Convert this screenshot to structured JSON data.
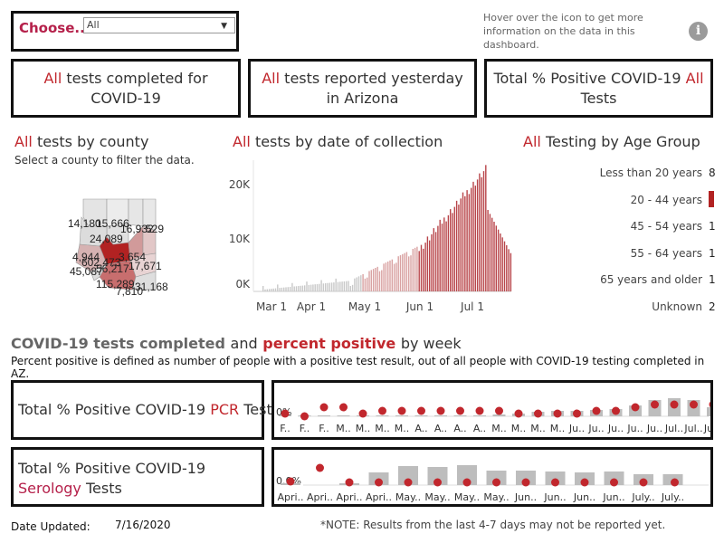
{
  "filter": {
    "label": "Choose...",
    "selected": "All"
  },
  "info_text": "Hover over the icon to get more information on the data in this dashboard.",
  "info_icon": "i",
  "kpis": [
    {
      "prefix": "All",
      "text": "tests completed for COVID-19"
    },
    {
      "prefix": "All",
      "text": "tests reported yesterday in Arizona"
    },
    {
      "prefix_text": "Total % Positive COVID-19",
      "highlight": "All",
      "suffix": "Tests"
    }
  ],
  "county": {
    "prefix": "All",
    "title": "tests by county",
    "subtitle": "Select a county to filter the data.",
    "labels": [
      "14,180",
      "15,666",
      "16,932",
      "529",
      "24,089",
      "4,944",
      "602,473",
      "3,654",
      "45,087",
      "56,217",
      "17,671",
      "115,289",
      "31,168",
      "7,810"
    ]
  },
  "date_chart": {
    "prefix": "All",
    "title": "tests by date of collection",
    "yticks": [
      "20K",
      "10K",
      "0K"
    ],
    "xticks": [
      "Mar 1",
      "Apr 1",
      "May 1",
      "Jun 1",
      "Jul 1"
    ]
  },
  "age": {
    "prefix": "All",
    "title": "Testing by Age Group",
    "groups": [
      "Less than 20 years",
      "20 - 44 years",
      "45 - 54 years",
      "55 - 64 years",
      "65 years and older",
      "Unknown"
    ],
    "values": [
      "8",
      "",
      "1",
      "1",
      "1",
      "2"
    ]
  },
  "weekly": {
    "title_a": "COVID-19 tests completed",
    "title_and": "and",
    "title_b": "percent positive",
    "title_c": "by week",
    "subtitle": "Percent positive is defined as number of people with a positive test result, out of all people with COVID-19 testing completed in AZ."
  },
  "pcr": {
    "label_a": "Total % Positive COVID-19",
    "label_hl": "PCR",
    "label_b": "Tests",
    "axis_label": "0%",
    "xlabels": [
      "F..",
      "F..",
      "F..",
      "M..",
      "M..",
      "M..",
      "M..",
      "A..",
      "A..",
      "A..",
      "A..",
      "M..",
      "M..",
      "M..",
      "M..",
      "Ju..",
      "Ju..",
      "Ju..",
      "Ju..",
      "Ju..",
      "Jul..",
      "Jul..",
      "Jul.."
    ]
  },
  "serology": {
    "label_a": "Total % Positive COVID-19",
    "label_hl": "Serology",
    "label_b": "Tests",
    "axis_label": "0.0%",
    "xlabels": [
      "Apri..",
      "Apri..",
      "Apri..",
      "Apri..",
      "May..",
      "May..",
      "May..",
      "May..",
      "Jun..",
      "Jun..",
      "Jun..",
      "Jun..",
      "July..",
      "July.."
    ]
  },
  "footer": {
    "date_label": "Date Updated:",
    "date_value": "7/16/2020",
    "note": "*NOTE: Results from the last 4-7 days may not be reported yet."
  },
  "colors": {
    "accent": "#c1272d",
    "serology": "#b5204a",
    "bar_gray": "#bdbdbd"
  }
}
